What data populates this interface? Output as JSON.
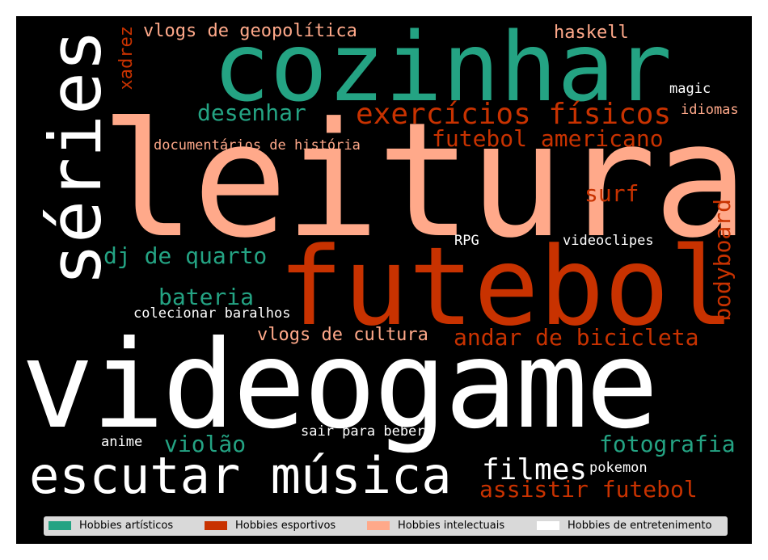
{
  "colors": {
    "artisticos": "#24a383",
    "esportivos": "#c83200",
    "intelectuais": "#ffa98a",
    "entretenimento": "#ffffff"
  },
  "words": {
    "cozinhar": "cozinhar",
    "leitura": "leitura",
    "series": "séries",
    "futebol": "futebol",
    "videogame": "videogame",
    "escutar_musica": "escutar música",
    "vlogs_geopolitica": "vlogs de geopolítica",
    "haskell": "haskell",
    "xadrez": "xadrez",
    "desenhar": "desenhar",
    "exercicios_fisicos": "exercícios físicos",
    "magic": "magic",
    "idiomas": "idiomas",
    "documentarios_historia": "documentários de história",
    "futebol_americano": "futebol americano",
    "surf": "surf",
    "rpg": "RPG",
    "videoclipes": "videoclipes",
    "dj_de_quarto": "dj de quarto",
    "bodyboard": "bodyboard",
    "bateria": "bateria",
    "colecionar_baralhos": "colecionar baralhos",
    "vlogs_cultura": "vlogs de cultura",
    "andar_bicicleta": "andar de bicicleta",
    "anime": "anime",
    "violao": "violão",
    "sair_para_beber": "sair para beber",
    "fotografia": "fotografia",
    "filmes": "filmes",
    "pokemon": "pokemon",
    "assistir_futebol": "assistir futebol"
  },
  "legend": {
    "items": [
      {
        "label": "Hobbies artísticos",
        "color": "#24a383"
      },
      {
        "label": "Hobbies esportivos",
        "color": "#c83200"
      },
      {
        "label": "Hobbies intelectuais",
        "color": "#ffa98a"
      },
      {
        "label": "Hobbies de entretenimento",
        "color": "#ffffff"
      }
    ]
  }
}
